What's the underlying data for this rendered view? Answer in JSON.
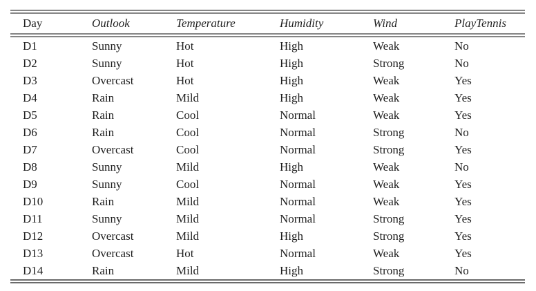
{
  "table": {
    "name": "play-tennis-training-examples",
    "columns": [
      {
        "key": "day",
        "label": "Day"
      },
      {
        "key": "outlook",
        "label": "Outlook"
      },
      {
        "key": "temperature",
        "label": "Temperature"
      },
      {
        "key": "humidity",
        "label": "Humidity"
      },
      {
        "key": "wind",
        "label": "Wind"
      },
      {
        "key": "playtennis",
        "label": "PlayTennis"
      }
    ],
    "rows": [
      [
        "D1",
        "Sunny",
        "Hot",
        "High",
        "Weak",
        "No"
      ],
      [
        "D2",
        "Sunny",
        "Hot",
        "High",
        "Strong",
        "No"
      ],
      [
        "D3",
        "Overcast",
        "Hot",
        "High",
        "Weak",
        "Yes"
      ],
      [
        "D4",
        "Rain",
        "Mild",
        "High",
        "Weak",
        "Yes"
      ],
      [
        "D5",
        "Rain",
        "Cool",
        "Normal",
        "Weak",
        "Yes"
      ],
      [
        "D6",
        "Rain",
        "Cool",
        "Normal",
        "Strong",
        "No"
      ],
      [
        "D7",
        "Overcast",
        "Cool",
        "Normal",
        "Strong",
        "Yes"
      ],
      [
        "D8",
        "Sunny",
        "Mild",
        "High",
        "Weak",
        "No"
      ],
      [
        "D9",
        "Sunny",
        "Cool",
        "Normal",
        "Weak",
        "Yes"
      ],
      [
        "D10",
        "Rain",
        "Mild",
        "Normal",
        "Weak",
        "Yes"
      ],
      [
        "D11",
        "Sunny",
        "Mild",
        "Normal",
        "Strong",
        "Yes"
      ],
      [
        "D12",
        "Overcast",
        "Mild",
        "High",
        "Strong",
        "Yes"
      ],
      [
        "D13",
        "Overcast",
        "Hot",
        "Normal",
        "Weak",
        "Yes"
      ],
      [
        "D14",
        "Rain",
        "Mild",
        "High",
        "Strong",
        "No"
      ]
    ]
  },
  "colors": {
    "rule": "#858585",
    "rule_bottom": "#6b6b6b",
    "text": "#1f1f1f",
    "background": "#ffffff"
  }
}
